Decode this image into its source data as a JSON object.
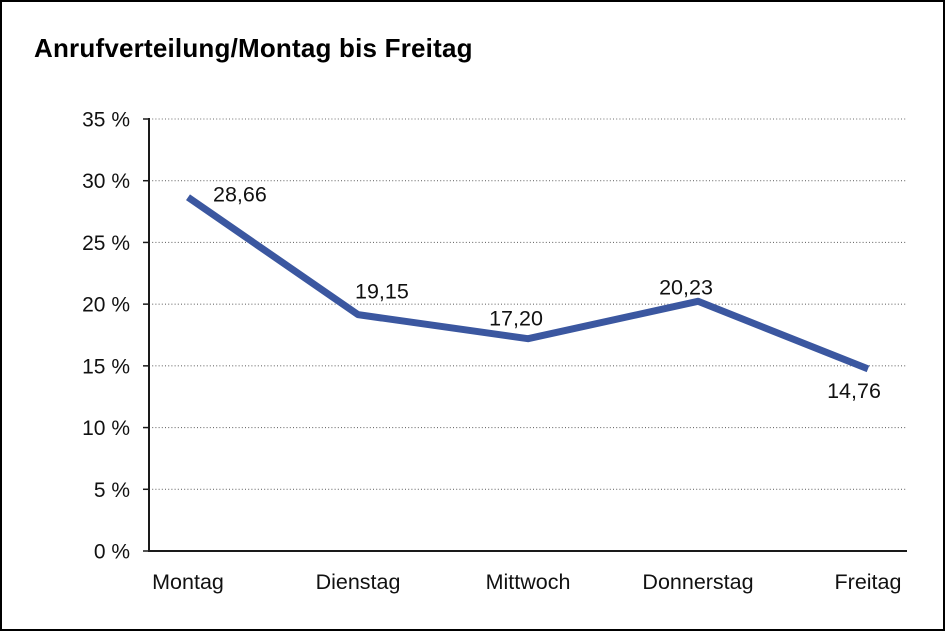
{
  "chart_data": {
    "type": "line",
    "title": "Anrufverteilung/Montag bis Freitag",
    "categories": [
      "Montag",
      "Dienstag",
      "Mittwoch",
      "Donnerstag",
      "Freitag"
    ],
    "values": [
      28.66,
      19.15,
      17.2,
      20.23,
      14.76
    ],
    "value_labels": [
      "28,66",
      "19,15",
      "17,20",
      "20,23",
      "14,76"
    ],
    "ylim": [
      0,
      35
    ],
    "ytick_step": 5,
    "ytick_labels": [
      "0 %",
      "5 %",
      "10 %",
      "15 %",
      "20 %",
      "25 %",
      "30 %",
      "35 %"
    ],
    "grid": "horizontal-dotted",
    "legend": "none",
    "colors": {
      "line": "#3B57A0",
      "axis": "#1a1a1a",
      "grid": "#6e6e6e",
      "text": "#111111",
      "background": "#ffffff",
      "frame_border": "#000000"
    }
  }
}
